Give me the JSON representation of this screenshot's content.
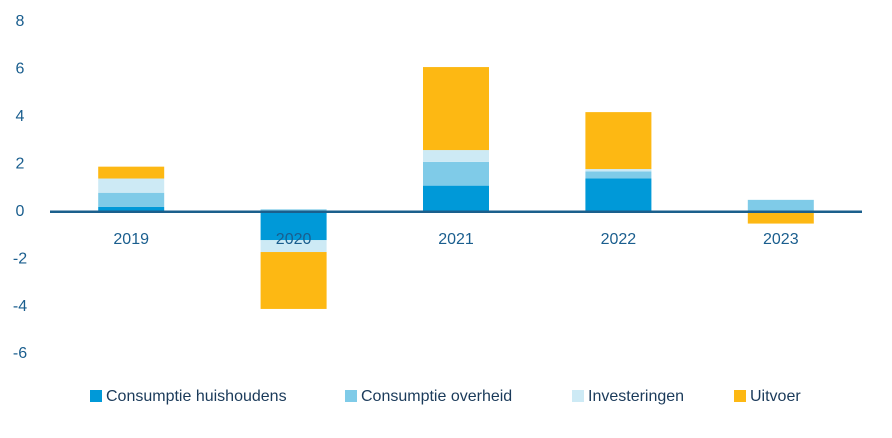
{
  "chart_data": {
    "type": "stacked_bar",
    "categories": [
      "2019",
      "2020",
      "2021",
      "2022",
      "2023"
    ],
    "series": [
      {
        "name": "Consumptie huishoudens",
        "color": "#0099d8",
        "values": [
          0.2,
          -1.2,
          1.1,
          1.4,
          0
        ]
      },
      {
        "name": "Consumptie overheid",
        "color": "#7fcbe8",
        "values": [
          0.6,
          0.1,
          1.0,
          0.3,
          0.5
        ]
      },
      {
        "name": "Investeringen",
        "color": "#cdeaf5",
        "values": [
          0.6,
          -0.5,
          0.5,
          0.1,
          0
        ]
      },
      {
        "name": "Uitvoer",
        "color": "#fdb813",
        "values": [
          0.5,
          -2.4,
          3.5,
          2.4,
          -0.5
        ]
      }
    ],
    "ylim": [
      -6,
      8
    ],
    "yticks": [
      -6,
      -4,
      -2,
      0,
      2,
      4,
      6,
      8
    ],
    "grid": false
  }
}
